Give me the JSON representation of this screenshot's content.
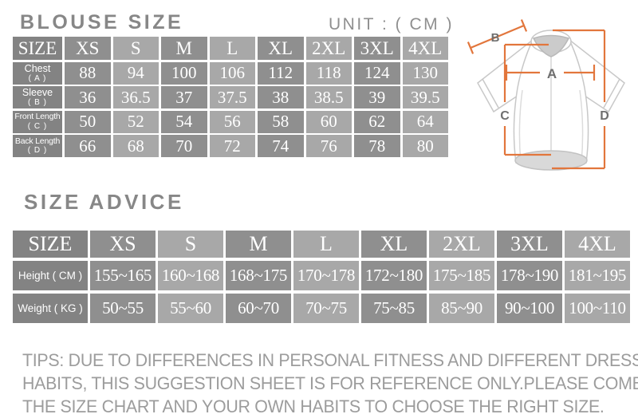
{
  "page": {
    "title_blouse": "BLOUSE SIZE",
    "unit_label": "UNIT : ( CM )",
    "title_advice": "SIZE ADVICE"
  },
  "blouse_table": {
    "header": [
      "SIZE",
      "XS",
      "S",
      "M",
      "L",
      "XL",
      "2XL",
      "3XL",
      "4XL"
    ],
    "rows": [
      {
        "label": "Chest",
        "sub": "( A )",
        "values": [
          "88",
          "94",
          "100",
          "106",
          "112",
          "118",
          "124",
          "130"
        ]
      },
      {
        "label": "Sleeve",
        "sub": "( B )",
        "values": [
          "36",
          "36.5",
          "37",
          "37.5",
          "38",
          "38.5",
          "39",
          "39.5"
        ]
      },
      {
        "label": "Front Length",
        "sub": "( C )",
        "values": [
          "50",
          "52",
          "54",
          "56",
          "58",
          "60",
          "62",
          "64"
        ]
      },
      {
        "label": "Back Length",
        "sub": "( D )",
        "values": [
          "66",
          "68",
          "70",
          "72",
          "74",
          "76",
          "78",
          "80"
        ]
      }
    ]
  },
  "advice_table": {
    "header": [
      "SIZE",
      "XS",
      "S",
      "M",
      "L",
      "XL",
      "2XL",
      "3XL",
      "4XL"
    ],
    "rows": [
      {
        "label": "Height ( CM )",
        "values": [
          "155~165",
          "160~168",
          "168~175",
          "170~178",
          "172~180",
          "175~185",
          "178~190",
          "181~195"
        ]
      },
      {
        "label": "Weight ( KG )",
        "values": [
          "50~55",
          "55~60",
          "60~70",
          "70~75",
          "75~85",
          "85~90",
          "90~100",
          "100~110"
        ]
      }
    ]
  },
  "diagram": {
    "a": "A",
    "b": "B",
    "c": "C",
    "d": "D"
  },
  "tips_lines": [
    "TIPS: DUE TO DIFFERENCES IN PERSONAL FITNESS AND DIFFERENT DRESSING",
    "HABITS, THIS SUGGESTION SHEET IS FOR REFERENCE ONLY.PLEASE COMBINE",
    "THE SIZE CHART AND YOUR OWN HABITS TO CHOOSE THE RIGHT SIZE."
  ],
  "colors": {
    "title_gray": "#878787",
    "cell_dark": "#8f8f8f",
    "cell_light": "#a8a8a8",
    "cell_label": "#838383",
    "measure_orange": "#e2763c",
    "tips_gray": "#9c9c9c"
  }
}
